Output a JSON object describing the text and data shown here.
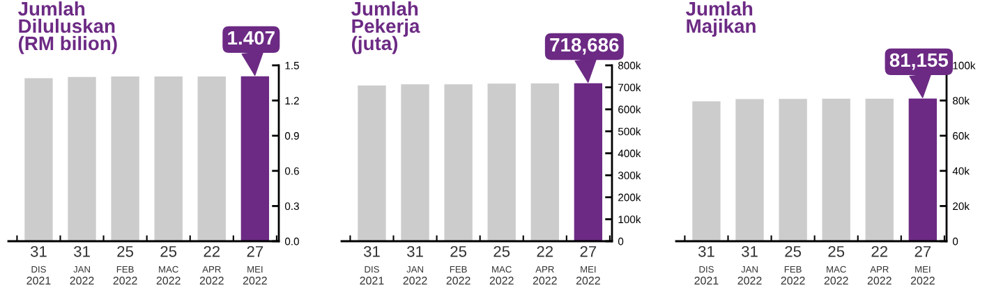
{
  "chart_data": [
    {
      "type": "bar",
      "title": "Jumlah\nDiluluskan\n(RM bilion)",
      "categories": [
        "31\nDIS\n2021",
        "31\nJAN\n2022",
        "25\nFEB\n2022",
        "25\nMAC\n2022",
        "22\nAPR\n2022",
        "27\nMEI\n2022"
      ],
      "values": [
        1.39,
        1.4,
        1.405,
        1.405,
        1.405,
        1.407
      ],
      "colors": [
        "#cccccc",
        "#cccccc",
        "#cccccc",
        "#cccccc",
        "#cccccc",
        "#6c2a84"
      ],
      "value_labels": [
        null,
        null,
        null,
        null,
        null,
        "1.407"
      ],
      "ylim": [
        0,
        1.5
      ],
      "yticks": [
        {
          "value": 0,
          "label": "0.0"
        },
        {
          "value": 0.3,
          "label": "0.3"
        },
        {
          "value": 0.6,
          "label": "0.6"
        },
        {
          "value": 0.9,
          "label": "0.9"
        },
        {
          "value": 1.2,
          "label": "1.2"
        },
        {
          "value": 1.5,
          "label": "1.5"
        }
      ],
      "grid": false,
      "legend": false
    },
    {
      "type": "bar",
      "title": "Jumlah\nPekerja\n(juta)",
      "categories": [
        "31\nDIS\n2021",
        "31\nJAN\n2022",
        "25\nFEB\n2022",
        "25\nMAC\n2022",
        "22\nAPR\n2022",
        "27\nMEI\n2022"
      ],
      "values": [
        708000,
        714000,
        714000,
        717000,
        718000,
        718686
      ],
      "colors": [
        "#cccccc",
        "#cccccc",
        "#cccccc",
        "#cccccc",
        "#cccccc",
        "#6c2a84"
      ],
      "value_labels": [
        null,
        null,
        null,
        null,
        null,
        "718,686"
      ],
      "ylim": [
        0,
        800000
      ],
      "yticks": [
        0,
        {
          "value": 100000,
          "label": "100k"
        },
        {
          "value": 200000,
          "label": "200k"
        },
        {
          "value": 300000,
          "label": "300k"
        },
        {
          "value": 400000,
          "label": "400k"
        },
        {
          "value": 500000,
          "label": "500k"
        },
        {
          "value": 600000,
          "label": "600k"
        },
        {
          "value": 700000,
          "label": "700k"
        },
        {
          "value": 800000,
          "label": "800k"
        }
      ],
      "grid": false,
      "legend": false
    },
    {
      "type": "bar",
      "title": "Jumlah\nMajikan",
      "categories": [
        "31\nDIS\n2021",
        "31\nJAN\n2022",
        "25\nFEB\n2022",
        "25\nMAC\n2022",
        "22\nAPR\n2022",
        "27\nMEI\n2022"
      ],
      "values": [
        79500,
        80800,
        80900,
        81000,
        81000,
        81155
      ],
      "colors": [
        "#cccccc",
        "#cccccc",
        "#cccccc",
        "#cccccc",
        "#cccccc",
        "#6c2a84"
      ],
      "value_labels": [
        null,
        null,
        null,
        null,
        null,
        "81,155"
      ],
      "ylim": [
        0,
        100000
      ],
      "yticks": [
        0,
        {
          "value": 20000,
          "label": "20k"
        },
        {
          "value": 40000,
          "label": "40k"
        },
        {
          "value": 60000,
          "label": "60k"
        },
        {
          "value": 80000,
          "label": "80k"
        },
        {
          "value": 100000,
          "label": "100k"
        }
      ],
      "grid": false,
      "legend": false
    }
  ]
}
